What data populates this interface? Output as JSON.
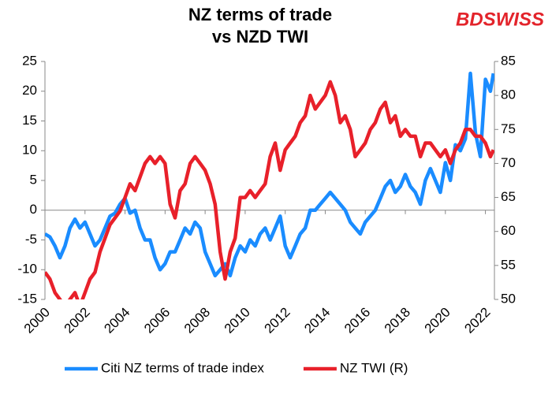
{
  "chart_data": {
    "type": "line",
    "title": [
      "NZ terms of trade",
      "vs NZD TWI"
    ],
    "logo": "BDSWISS",
    "x": [
      2000,
      2000.25,
      2000.5,
      2000.75,
      2001,
      2001.25,
      2001.5,
      2001.75,
      2002,
      2002.25,
      2002.5,
      2002.75,
      2003,
      2003.25,
      2003.5,
      2003.75,
      2004,
      2004.25,
      2004.5,
      2004.75,
      2005,
      2005.25,
      2005.5,
      2005.75,
      2006,
      2006.25,
      2006.5,
      2006.75,
      2007,
      2007.25,
      2007.5,
      2007.75,
      2008,
      2008.25,
      2008.5,
      2008.75,
      2009,
      2009.25,
      2009.5,
      2009.75,
      2010,
      2010.25,
      2010.5,
      2010.75,
      2011,
      2011.25,
      2011.5,
      2011.75,
      2012,
      2012.25,
      2012.5,
      2012.75,
      2013,
      2013.25,
      2013.5,
      2013.75,
      2014,
      2014.25,
      2014.5,
      2014.75,
      2015,
      2015.25,
      2015.5,
      2015.75,
      2016,
      2016.25,
      2016.5,
      2016.75,
      2017,
      2017.25,
      2017.5,
      2017.75,
      2018,
      2018.25,
      2018.5,
      2018.75,
      2019,
      2019.25,
      2019.5,
      2019.75,
      2020,
      2020.25,
      2020.5,
      2020.75,
      2021,
      2021.25,
      2021.5,
      2021.75,
      2022,
      2022.25,
      2022.4
    ],
    "series": [
      {
        "name": "Citi NZ terms of trade index",
        "color": "#1a8cff",
        "axis": "y",
        "values": [
          -4,
          -4.5,
          -6,
          -8,
          -6,
          -3,
          -1.5,
          -3,
          -2,
          -4,
          -6,
          -5,
          -3,
          -1,
          -0.5,
          1,
          2,
          -0.5,
          0,
          -3,
          -5,
          -5,
          -8,
          -10,
          -9,
          -7,
          -7,
          -5,
          -3,
          -4,
          -2,
          -3,
          -7,
          -9,
          -11,
          -10,
          -9,
          -11,
          -8,
          -6,
          -7,
          -5,
          -6,
          -4,
          -3,
          -5,
          -3,
          -1,
          -6,
          -8,
          -6,
          -4,
          -3,
          0,
          0,
          1,
          2,
          3,
          2,
          1,
          0,
          -2,
          -3,
          -4,
          -2,
          -1,
          0,
          2,
          4,
          5,
          3,
          4,
          6,
          4,
          3,
          1,
          5,
          7,
          5,
          3,
          8,
          5,
          11,
          10,
          12,
          23,
          13,
          9,
          22,
          20,
          23
        ]
      },
      {
        "name": "NZ TWI (R)",
        "color": "#e8202a",
        "axis": "y2",
        "values": [
          54,
          53,
          51,
          50,
          49,
          50,
          51,
          49,
          51,
          53,
          54,
          57,
          59,
          61,
          62,
          63,
          65,
          67,
          66,
          68,
          70,
          71,
          70,
          71,
          70,
          64,
          62,
          66,
          67,
          70,
          71,
          70,
          69,
          67,
          64,
          57,
          53,
          57,
          59,
          65,
          65,
          66,
          65,
          66,
          67,
          71,
          73,
          69,
          72,
          73,
          74,
          76,
          77,
          80,
          78,
          79,
          80,
          82,
          80,
          76,
          77,
          75,
          71,
          72,
          73,
          75,
          76,
          78,
          79,
          76,
          77,
          74,
          75,
          74,
          74,
          71,
          73,
          73,
          72,
          71,
          72,
          70,
          72,
          73,
          75,
          75,
          74,
          74,
          73,
          71,
          72
        ]
      }
    ],
    "xlim": [
      2000,
      2022.45
    ],
    "xticks": [
      2000,
      2002,
      2004,
      2006,
      2008,
      2010,
      2012,
      2014,
      2016,
      2018,
      2020,
      2022
    ],
    "ylim": [
      -15,
      25
    ],
    "yticks": [
      -15,
      -10,
      -5,
      0,
      5,
      10,
      15,
      20,
      25
    ],
    "y2lim": [
      50,
      85
    ],
    "y2ticks": [
      50,
      55,
      60,
      65,
      70,
      75,
      80,
      85
    ],
    "legend": "bottom"
  }
}
